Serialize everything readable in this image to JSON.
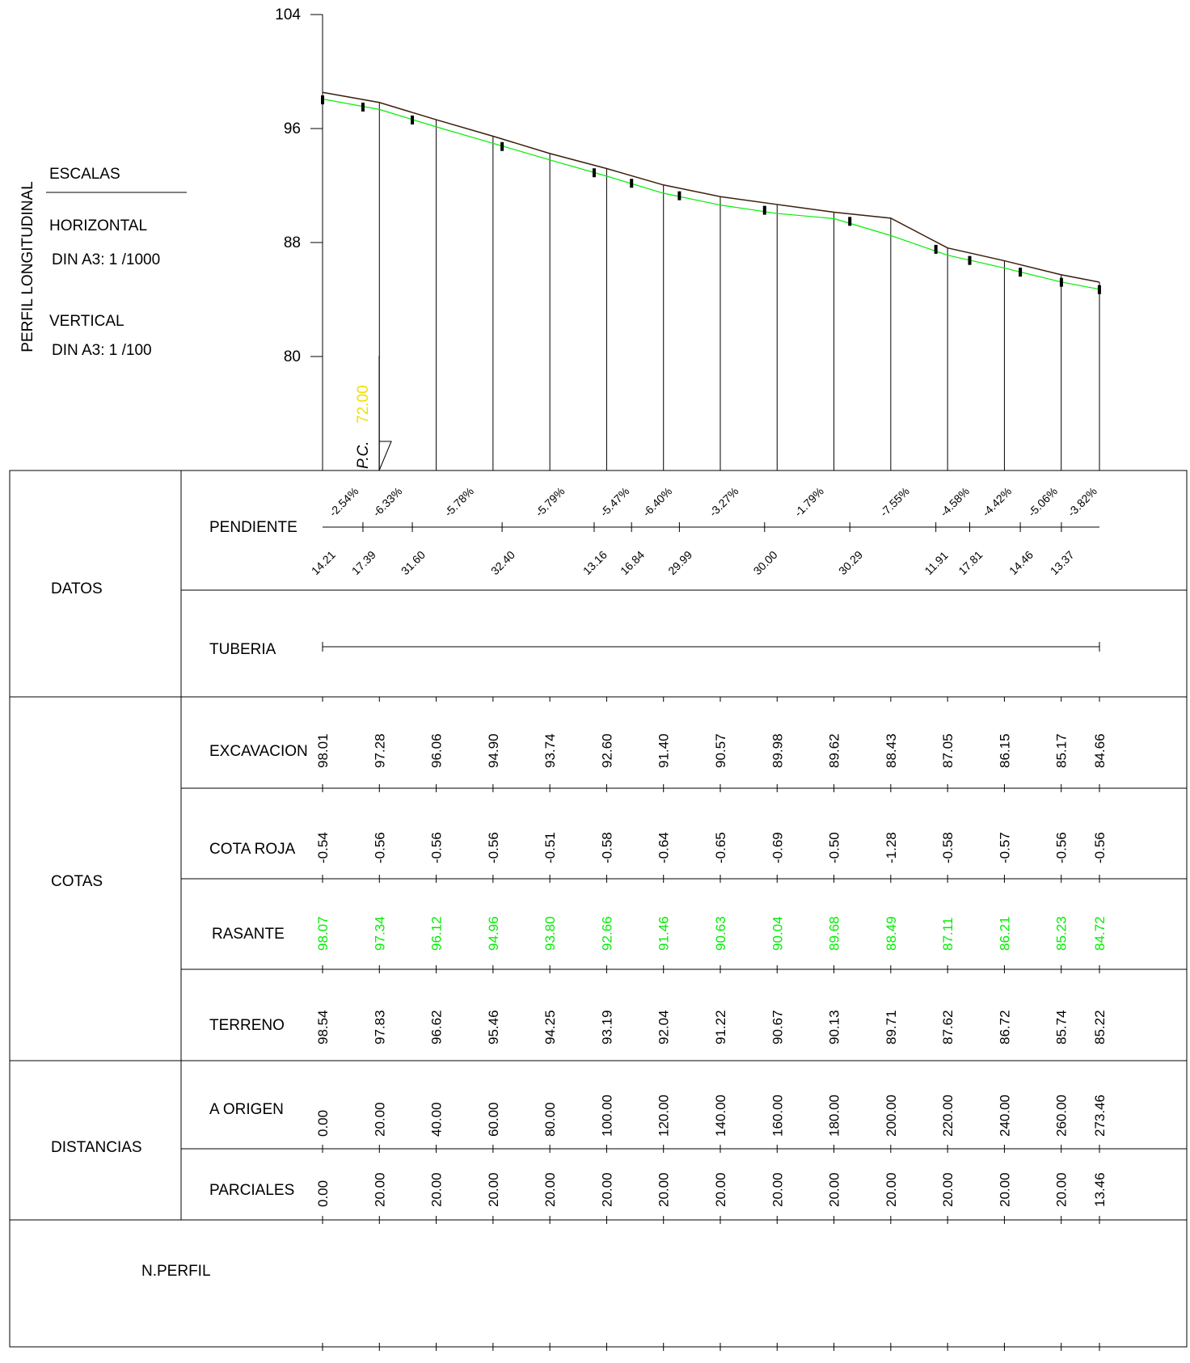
{
  "side_title": "PERFIL LONGITUDINAL",
  "scales": {
    "title": "ESCALAS",
    "horizontal_label": "HORIZONTAL",
    "horizontal_value": "DIN A3: 1 /1000",
    "vertical_label": "VERTICAL",
    "vertical_value": "DIN A3: 1 /100"
  },
  "pc": {
    "label": "P.C.",
    "value": "72.00"
  },
  "colors": {
    "rasante": "#00ee00",
    "terrain": "#3a1d0a",
    "pc_value": "#f2e000",
    "lines": "#000000"
  },
  "groups": {
    "datos": "DATOS",
    "cotas": "COTAS",
    "distancias": "DISTANCIAS",
    "n_perfil": "N.PERFIL"
  },
  "row_labels": {
    "pendiente": "PENDIENTE",
    "tuberia": "TUBERIA",
    "excavacion": "EXCAVACION",
    "cota_roja": "COTA ROJA",
    "rasante": "RASANTE",
    "terreno": "TERRENO",
    "a_origen": "A ORIGEN",
    "parciales": "PARCIALES"
  },
  "slopes": [
    "-2.54%",
    "-6.33%",
    "-5.78%",
    "-5.79%",
    "-5.47%",
    "-6.40%",
    "-3.27%",
    "-1.79%",
    "-7.55%",
    "-4.58%",
    "-4.42%",
    "-5.06%",
    "-3.82%"
  ],
  "segment_lengths": [
    "14.21",
    "17.39",
    "31.60",
    "32.40",
    "13.16",
    "16.84",
    "29.99",
    "30.00",
    "30.29",
    "11.91",
    "17.81",
    "14.46",
    "13.37"
  ],
  "excavacion": [
    "98.01",
    "97.28",
    "96.06",
    "94.90",
    "93.74",
    "92.60",
    "91.40",
    "90.57",
    "89.98",
    "89.62",
    "88.43",
    "87.05",
    "86.15",
    "85.17",
    "84.66"
  ],
  "cota_roja": [
    "-0.54",
    "-0.56",
    "-0.56",
    "-0.56",
    "-0.51",
    "-0.58",
    "-0.64",
    "-0.65",
    "-0.69",
    "-0.50",
    "-1.28",
    "-0.58",
    "-0.57",
    "-0.56",
    "-0.56"
  ],
  "rasante": [
    "98.07",
    "97.34",
    "96.12",
    "94.96",
    "93.80",
    "92.66",
    "91.46",
    "90.63",
    "90.04",
    "89.68",
    "88.49",
    "87.11",
    "86.21",
    "85.23",
    "84.72"
  ],
  "terreno": [
    "98.54",
    "97.83",
    "96.62",
    "95.46",
    "94.25",
    "93.19",
    "92.04",
    "91.22",
    "90.67",
    "90.13",
    "89.71",
    "87.62",
    "86.72",
    "85.74",
    "85.22"
  ],
  "a_origen": [
    "0.00",
    "20.00",
    "40.00",
    "60.00",
    "80.00",
    "100.00",
    "120.00",
    "140.00",
    "160.00",
    "180.00",
    "200.00",
    "220.00",
    "240.00",
    "260.00",
    "273.46"
  ],
  "parciales": [
    "0.00",
    "20.00",
    "20.00",
    "20.00",
    "20.00",
    "20.00",
    "20.00",
    "20.00",
    "20.00",
    "20.00",
    "20.00",
    "20.00",
    "20.00",
    "20.00",
    "13.46"
  ],
  "chart_data": {
    "type": "line",
    "x": [
      0,
      20,
      40,
      60,
      80,
      100,
      120,
      140,
      160,
      180,
      200,
      220,
      240,
      260,
      273.46
    ],
    "series": [
      {
        "values": [
          98.54,
          97.83,
          96.62,
          95.46,
          94.25,
          93.19,
          92.04,
          91.22,
          90.67,
          90.13,
          89.71,
          87.62,
          86.72,
          85.74,
          85.22
        ]
      },
      {
        "values": [
          98.07,
          97.34,
          96.12,
          94.96,
          93.8,
          92.66,
          91.46,
          90.63,
          90.04,
          89.68,
          88.49,
          87.11,
          86.21,
          85.23,
          84.72
        ]
      }
    ],
    "breaks_x": [
      0,
      14.21,
      31.6,
      63.2,
      95.6,
      108.76,
      125.6,
      155.59,
      185.59,
      215.88,
      227.79,
      245.6,
      260.06,
      273.43
    ],
    "y_ticks": [
      "104",
      "96",
      "88",
      "80"
    ],
    "ylim": [
      72,
      104
    ],
    "xlim": [
      0,
      273.46
    ]
  }
}
